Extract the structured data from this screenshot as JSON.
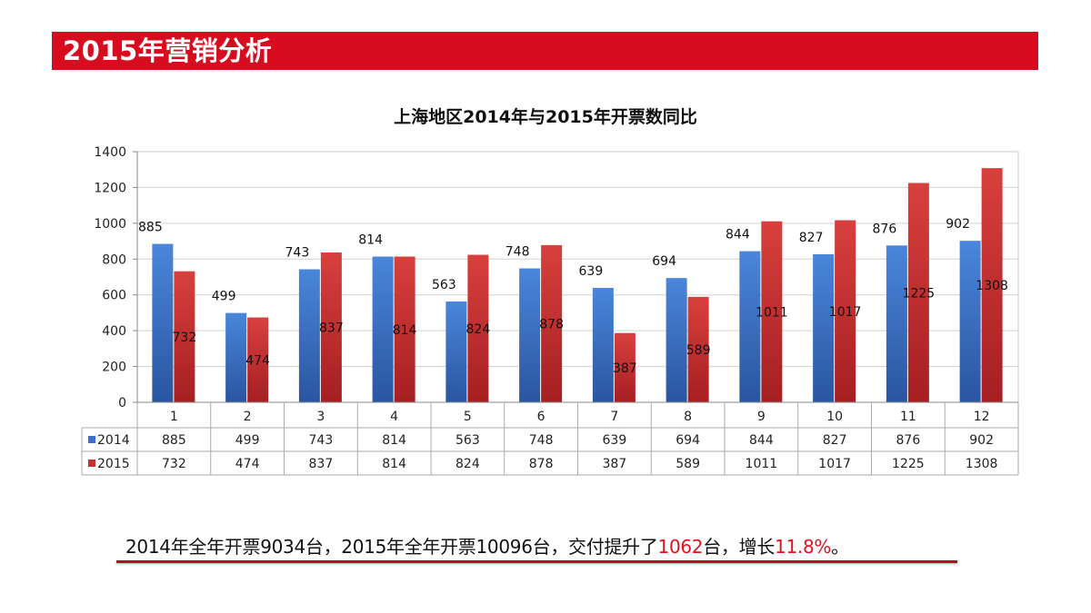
{
  "header": {
    "title": "2015年营销分析"
  },
  "colors": {
    "accent": "#d70c1e",
    "series_2014": "#3a70c6",
    "series_2015": "#c8302f",
    "highlight": "#e0141f"
  },
  "chart_data": {
    "type": "bar",
    "title": "上海地区2014年与2015年开票数同比",
    "categories": [
      "1",
      "2",
      "3",
      "4",
      "5",
      "6",
      "7",
      "8",
      "9",
      "10",
      "11",
      "12"
    ],
    "series": [
      {
        "name": "2014",
        "values": [
          885,
          499,
          743,
          814,
          563,
          748,
          639,
          694,
          844,
          827,
          876,
          902
        ]
      },
      {
        "name": "2015",
        "values": [
          732,
          474,
          837,
          814,
          824,
          878,
          387,
          589,
          1011,
          1017,
          1225,
          1308
        ]
      }
    ],
    "yticks": [
      "0",
      "200",
      "400",
      "600",
      "800",
      "1000",
      "1200",
      "1400"
    ],
    "ylim": [
      0,
      1400
    ],
    "grid": true,
    "legend": "data-table"
  },
  "summary": {
    "part1": "2014年全年开票9034台，2015年全年开票10096台，交付提升了",
    "increase": "1062",
    "part2": "台，增长",
    "growth": "11.8%",
    "part3": "。"
  }
}
